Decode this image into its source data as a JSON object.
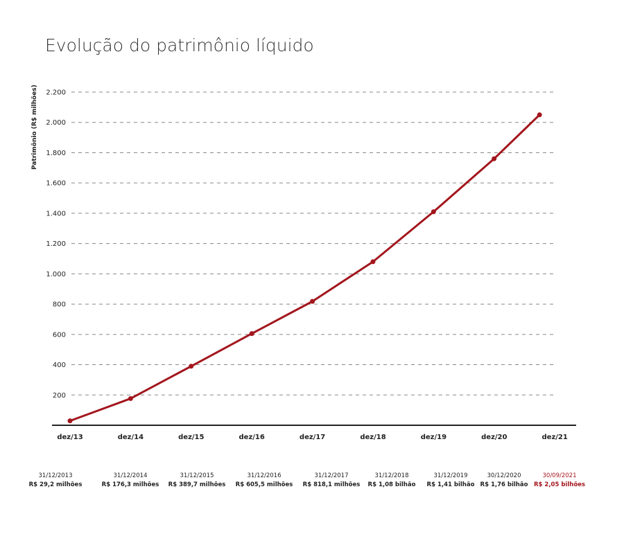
{
  "chart_data": {
    "type": "line",
    "title": "Evolução do patrimônio líquido",
    "ylabel": "Patrimônio (R$ milhões)",
    "xlabel": "",
    "ylim": [
      0,
      2200
    ],
    "yticks": [
      200,
      400,
      600,
      800,
      1000,
      1200,
      1400,
      1600,
      1800,
      2000,
      2200
    ],
    "ytick_labels": [
      "200",
      "400",
      "600",
      "800",
      "1.000",
      "1.200",
      "1.400",
      "1.600",
      "1.800",
      "2.000",
      "2.200"
    ],
    "xtick_labels": [
      "dez/13",
      "dez/14",
      "dez/15",
      "dez/16",
      "dez/17",
      "dez/18",
      "dez/19",
      "dez/20",
      "dez/21"
    ],
    "grid": "horizontal dashed",
    "line_color": "#a3161d",
    "highlight_color": "#a3161d",
    "x": [
      "2013-12-31",
      "2014-12-31",
      "2015-12-31",
      "2016-12-31",
      "2017-12-31",
      "2018-12-31",
      "2019-12-31",
      "2020-12-30",
      "2021-09-30"
    ],
    "values": [
      29.2,
      176.3,
      389.7,
      605.5,
      818.1,
      1080,
      1410,
      1760,
      2050
    ],
    "annotations": [
      {
        "date": "31/12/2013",
        "value": "R$ 29,2 milhões"
      },
      {
        "date": "31/12/2014",
        "value": "R$ 176,3 milhões"
      },
      {
        "date": "31/12/2015",
        "value": "R$ 389,7 milhões"
      },
      {
        "date": "31/12/2016",
        "value": "R$ 605,5 milhões"
      },
      {
        "date": "31/12/2017",
        "value": "R$ 818,1 milhões"
      },
      {
        "date": "31/12/2018",
        "value": "R$ 1,08 bilhão"
      },
      {
        "date": "31/12/2019",
        "value": "R$ 1,41 bilhão"
      },
      {
        "date": "30/12/2020",
        "value": "R$ 1,76 bilhão"
      },
      {
        "date": "30/09/2021",
        "value": "R$ 2,05 bilhões",
        "highlight": true
      }
    ]
  }
}
